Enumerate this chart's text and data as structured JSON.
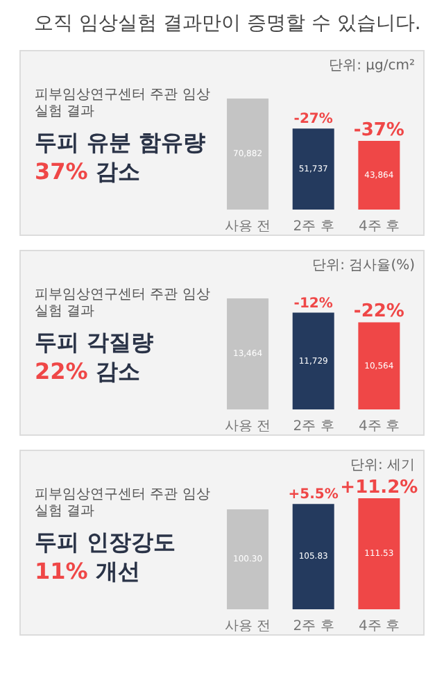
{
  "chart_data": [
    {
      "type": "bar",
      "subtitle": "피부임상연구센터 주관 임상실험 결과",
      "title": "두피 유분 함유량",
      "categories": [
        "사용 전",
        "2주 후",
        "4주 후"
      ],
      "values": [
        70882,
        51737,
        43864
      ],
      "colors": [
        "#c4c4c4",
        "#243a5e",
        "#ef4747"
      ],
      "value_labels": [
        "70,882",
        "51,737",
        "43,864"
      ],
      "annotations": [
        "37% 감소",
        "단위: μg/cm²",
        "오직 임상실험 결과만이 증명할 수 있습니다.",
        "-27%",
        "-37%"
      ]
    },
    {
      "type": "bar",
      "subtitle": "피부임상연구센터 주관 임상실험 결과",
      "title": "두피 각질량",
      "categories": [
        "사용 전",
        "2주 후",
        "4주 후"
      ],
      "values": [
        13464,
        11729,
        10564
      ],
      "colors": [
        "#c4c4c4",
        "#243a5e",
        "#ef4747"
      ],
      "value_labels": [
        "13,464",
        "11,729",
        "10,564"
      ],
      "annotations": [
        "22% 감소",
        "단위: 검사율(%)",
        "-12%",
        "-22%"
      ]
    },
    {
      "type": "bar",
      "subtitle": "피부임상연구센터 주관 임상실험 결과",
      "title": "두피 인장강도",
      "categories": [
        "사용 전",
        "2주 후",
        "4주 후"
      ],
      "values": [
        100.3,
        105.83,
        111.53
      ],
      "colors": [
        "#c4c4c4",
        "#243a5e",
        "#ef4747"
      ],
      "value_labels": [
        "100.30",
        "105.83",
        "111.53"
      ],
      "annotations": [
        "11% 개선",
        "단위: 세기",
        "+5.5%",
        "+11.2%"
      ]
    }
  ]
}
